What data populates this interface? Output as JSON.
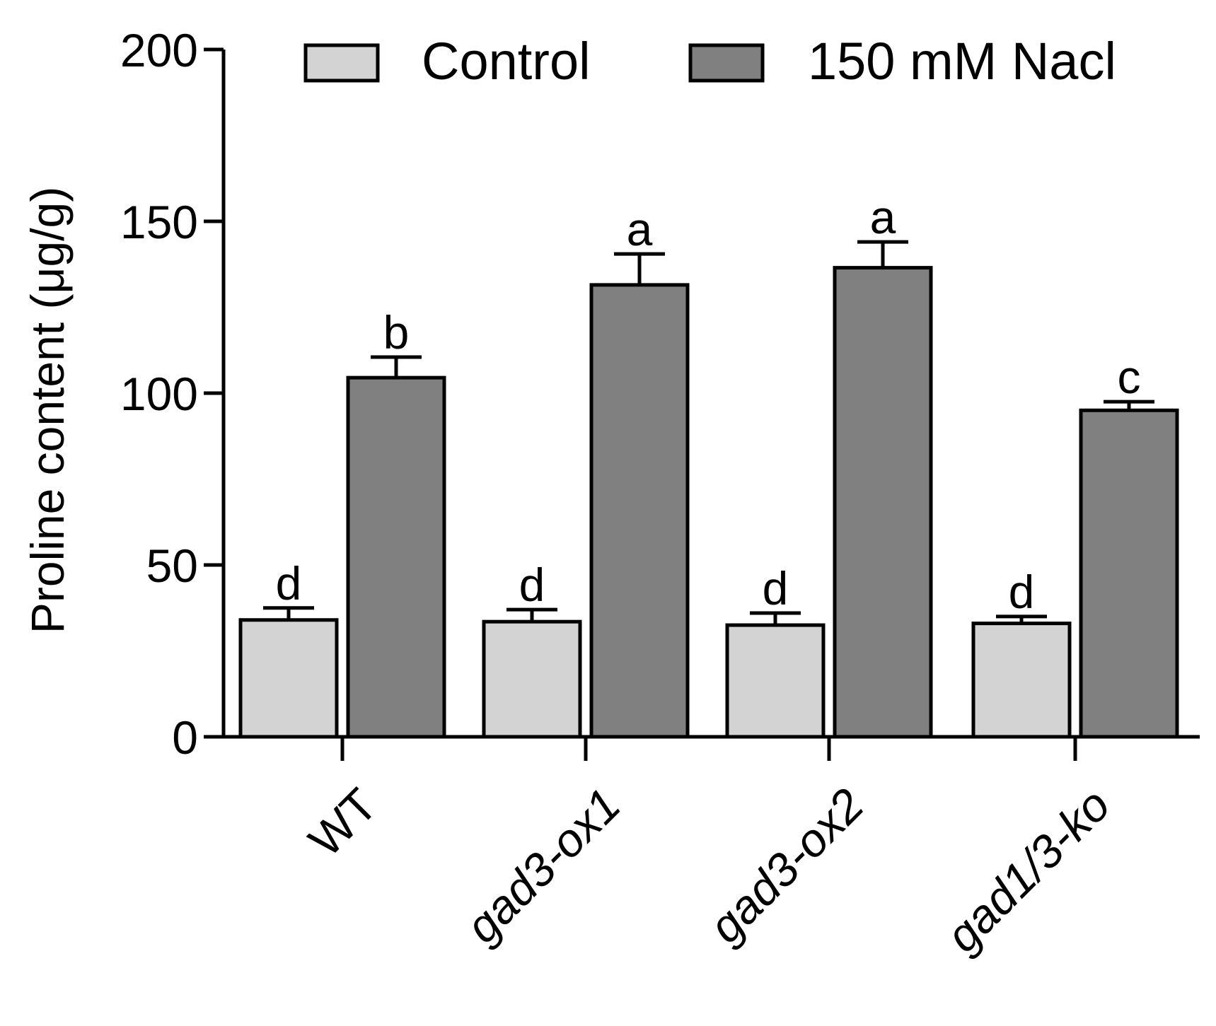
{
  "chart_data": {
    "type": "bar",
    "title": "",
    "xlabel": "",
    "ylabel": "Proline content (μg/g)",
    "ylim": [
      0,
      200
    ],
    "yticks": [
      "0",
      "50",
      "100",
      "150",
      "200"
    ],
    "categories": [
      "WT",
      "gad3-ox1",
      "gad3-ox2",
      "gad1/3-ko"
    ],
    "categories_italic": [
      false,
      true,
      true,
      true
    ],
    "legend_position": "top",
    "series": [
      {
        "name": "Control",
        "color": "#d3d3d3",
        "values": [
          34,
          33.5,
          32.5,
          33
        ],
        "errors": [
          3.5,
          3.5,
          3.5,
          2
        ],
        "letters": [
          "d",
          "d",
          "d",
          "d"
        ]
      },
      {
        "name": "150 mM Nacl",
        "color": "#808080",
        "values": [
          104.5,
          131.5,
          136.5,
          95
        ],
        "errors": [
          6,
          9,
          7.5,
          2.5
        ],
        "letters": [
          "b",
          "a",
          "a",
          "c"
        ]
      }
    ]
  }
}
